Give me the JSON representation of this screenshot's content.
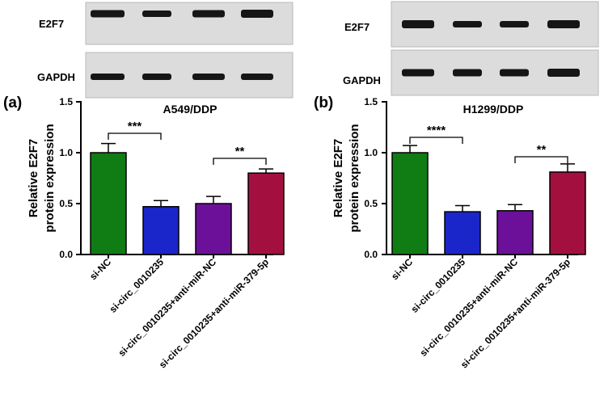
{
  "chart_data": [
    {
      "type": "bar",
      "panel": "(a)",
      "title": "A549/DDP",
      "ylabel": "Relative E2F7 protein expression",
      "ylabel_lines": [
        "Relative E2F7",
        "protein expression"
      ],
      "ylim": [
        0,
        1.5
      ],
      "yticks": [
        "0.0",
        "0.5",
        "1.0",
        "1.5"
      ],
      "categories": [
        "si-NC",
        "si-circ_0010235",
        "si-circ_0010235+anti-miR-NC",
        "si-circ_0010235+anti-miR-379-5p"
      ],
      "values": [
        1.0,
        0.47,
        0.5,
        0.8
      ],
      "errors": [
        0.09,
        0.06,
        0.07,
        0.04
      ],
      "colors": [
        "#0f7d14",
        "#1a26c9",
        "#6c109a",
        "#a3103f"
      ],
      "significance": [
        {
          "between": [
            0,
            1
          ],
          "label": "***"
        },
        {
          "between": [
            2,
            3
          ],
          "label": "**"
        }
      ],
      "blot": {
        "rows": [
          "E2F7",
          "GAPDH"
        ]
      }
    },
    {
      "type": "bar",
      "panel": "(b)",
      "title": "H1299/DDP",
      "ylabel": "Relative E2F7 protein expression",
      "ylabel_lines": [
        "Relative E2F7",
        "protein expression"
      ],
      "ylim": [
        0,
        1.5
      ],
      "yticks": [
        "0.0",
        "0.5",
        "1.0",
        "1.5"
      ],
      "categories": [
        "si-NC",
        "si-circ_0010235",
        "si-circ_0010235+anti-miR-NC",
        "si-circ_0010235+anti-miR-379-5p"
      ],
      "values": [
        1.0,
        0.42,
        0.43,
        0.81
      ],
      "errors": [
        0.07,
        0.06,
        0.06,
        0.08
      ],
      "colors": [
        "#0f7d14",
        "#1a26c9",
        "#6c109a",
        "#a3103f"
      ],
      "significance": [
        {
          "between": [
            0,
            1
          ],
          "label": "****"
        },
        {
          "between": [
            2,
            3
          ],
          "label": "**"
        }
      ],
      "blot": {
        "rows": [
          "E2F7",
          "GAPDH"
        ]
      }
    }
  ]
}
